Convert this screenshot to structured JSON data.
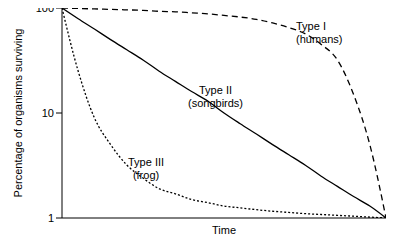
{
  "chart_data": {
    "type": "line",
    "x_label": "Time",
    "y_label": "Percentage of organisms surviving",
    "x": [
      0,
      0.5,
      1,
      1.5,
      2,
      2.5,
      3,
      3.5,
      4,
      4.5,
      5,
      5.5,
      6,
      6.5,
      7,
      7.5,
      8,
      8.5,
      9,
      9.5,
      10
    ],
    "xlim": [
      0,
      10
    ],
    "ylim": [
      1,
      100
    ],
    "yticks": [
      1,
      10,
      100
    ],
    "log": "y",
    "grid": false,
    "tick_labels": "y",
    "series": [
      {
        "name": "Type I (humans)",
        "color": "#000000",
        "line_style": "dashed",
        "values": [
          100,
          99,
          98,
          97,
          96,
          95,
          93,
          92,
          90,
          88,
          85,
          82,
          78,
          72,
          65,
          57,
          45,
          32,
          15,
          5,
          1
        ]
      },
      {
        "name": "Type II (songbirds)",
        "color": "#000000",
        "line_style": "solid",
        "values": [
          100,
          79,
          63,
          50,
          40,
          32,
          25,
          20,
          16,
          13,
          10,
          7.9,
          6.3,
          5,
          4,
          3.2,
          2.5,
          2,
          1.6,
          1.3,
          1
        ]
      },
      {
        "name": "Type III (frog)",
        "color": "#000000",
        "line_style": "dotted",
        "values": [
          100,
          25,
          9,
          5,
          3.2,
          2.4,
          1.9,
          1.7,
          1.5,
          1.4,
          1.3,
          1.25,
          1.2,
          1.16,
          1.13,
          1.1,
          1.08,
          1.06,
          1.04,
          1.02,
          1
        ]
      }
    ]
  }
}
